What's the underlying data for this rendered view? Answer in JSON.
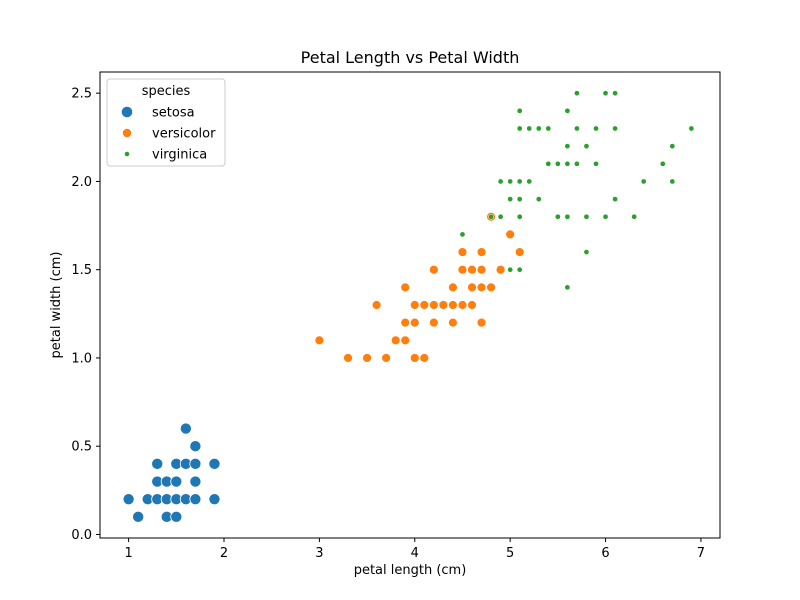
{
  "chart_data": {
    "type": "scatter",
    "title": "Petal Length vs Petal Width",
    "xlabel": "petal length (cm)",
    "ylabel": "petal width (cm)",
    "xlim": [
      0.7,
      7.2
    ],
    "ylim": [
      -0.02,
      2.62
    ],
    "x_ticks": [
      1,
      2,
      3,
      4,
      5,
      6,
      7
    ],
    "x_tick_labels": [
      "1",
      "2",
      "3",
      "4",
      "5",
      "6",
      "7"
    ],
    "y_ticks": [
      0.0,
      0.5,
      1.0,
      1.5,
      2.0,
      2.5
    ],
    "y_tick_labels": [
      "0.0",
      "0.5",
      "1.0",
      "1.5",
      "2.0",
      "2.5"
    ],
    "grid": false,
    "legend": {
      "title": "species",
      "placement": "top-left"
    },
    "series": [
      {
        "name": "setosa",
        "color": "#1f77b4",
        "marker_size": "large",
        "points": [
          [
            1.0,
            0.2
          ],
          [
            1.1,
            0.1
          ],
          [
            1.2,
            0.2
          ],
          [
            1.3,
            0.2
          ],
          [
            1.3,
            0.3
          ],
          [
            1.3,
            0.4
          ],
          [
            1.4,
            0.1
          ],
          [
            1.4,
            0.2
          ],
          [
            1.4,
            0.3
          ],
          [
            1.5,
            0.1
          ],
          [
            1.5,
            0.2
          ],
          [
            1.5,
            0.3
          ],
          [
            1.5,
            0.4
          ],
          [
            1.6,
            0.2
          ],
          [
            1.6,
            0.4
          ],
          [
            1.6,
            0.6
          ],
          [
            1.7,
            0.2
          ],
          [
            1.7,
            0.3
          ],
          [
            1.7,
            0.4
          ],
          [
            1.7,
            0.5
          ],
          [
            1.9,
            0.2
          ],
          [
            1.9,
            0.4
          ]
        ]
      },
      {
        "name": "versicolor",
        "color": "#ff7f0e",
        "marker_size": "medium",
        "points": [
          [
            3.0,
            1.1
          ],
          [
            3.3,
            1.0
          ],
          [
            3.5,
            1.0
          ],
          [
            3.6,
            1.3
          ],
          [
            3.7,
            1.0
          ],
          [
            3.8,
            1.1
          ],
          [
            3.9,
            1.1
          ],
          [
            3.9,
            1.2
          ],
          [
            3.9,
            1.4
          ],
          [
            4.0,
            1.0
          ],
          [
            4.0,
            1.2
          ],
          [
            4.0,
            1.3
          ],
          [
            4.1,
            1.0
          ],
          [
            4.1,
            1.3
          ],
          [
            4.2,
            1.2
          ],
          [
            4.2,
            1.3
          ],
          [
            4.2,
            1.5
          ],
          [
            4.3,
            1.3
          ],
          [
            4.4,
            1.2
          ],
          [
            4.4,
            1.3
          ],
          [
            4.4,
            1.4
          ],
          [
            4.5,
            1.3
          ],
          [
            4.5,
            1.5
          ],
          [
            4.5,
            1.6
          ],
          [
            4.6,
            1.3
          ],
          [
            4.6,
            1.4
          ],
          [
            4.6,
            1.5
          ],
          [
            4.7,
            1.2
          ],
          [
            4.7,
            1.4
          ],
          [
            4.7,
            1.5
          ],
          [
            4.7,
            1.6
          ],
          [
            4.8,
            1.4
          ],
          [
            4.8,
            1.8
          ],
          [
            4.9,
            1.5
          ],
          [
            5.0,
            1.7
          ],
          [
            5.1,
            1.6
          ]
        ]
      },
      {
        "name": "virginica",
        "color": "#2ca02c",
        "marker_size": "small",
        "points": [
          [
            4.5,
            1.7
          ],
          [
            4.8,
            1.8
          ],
          [
            4.9,
            1.8
          ],
          [
            4.9,
            2.0
          ],
          [
            5.0,
            1.5
          ],
          [
            5.0,
            1.9
          ],
          [
            5.0,
            2.0
          ],
          [
            5.1,
            1.5
          ],
          [
            5.1,
            1.8
          ],
          [
            5.1,
            1.9
          ],
          [
            5.1,
            2.0
          ],
          [
            5.1,
            2.3
          ],
          [
            5.1,
            2.4
          ],
          [
            5.2,
            2.0
          ],
          [
            5.2,
            2.3
          ],
          [
            5.3,
            1.9
          ],
          [
            5.3,
            2.3
          ],
          [
            5.4,
            2.1
          ],
          [
            5.4,
            2.3
          ],
          [
            5.5,
            1.8
          ],
          [
            5.5,
            2.1
          ],
          [
            5.6,
            1.4
          ],
          [
            5.6,
            1.8
          ],
          [
            5.6,
            2.1
          ],
          [
            5.6,
            2.2
          ],
          [
            5.6,
            2.4
          ],
          [
            5.7,
            2.1
          ],
          [
            5.7,
            2.3
          ],
          [
            5.7,
            2.5
          ],
          [
            5.8,
            1.6
          ],
          [
            5.8,
            1.8
          ],
          [
            5.8,
            2.2
          ],
          [
            5.9,
            2.1
          ],
          [
            5.9,
            2.3
          ],
          [
            6.0,
            1.8
          ],
          [
            6.0,
            2.5
          ],
          [
            6.1,
            1.9
          ],
          [
            6.1,
            2.3
          ],
          [
            6.1,
            2.5
          ],
          [
            6.3,
            1.8
          ],
          [
            6.4,
            2.0
          ],
          [
            6.6,
            2.1
          ],
          [
            6.7,
            2.0
          ],
          [
            6.7,
            2.2
          ],
          [
            6.9,
            2.3
          ]
        ]
      }
    ]
  }
}
